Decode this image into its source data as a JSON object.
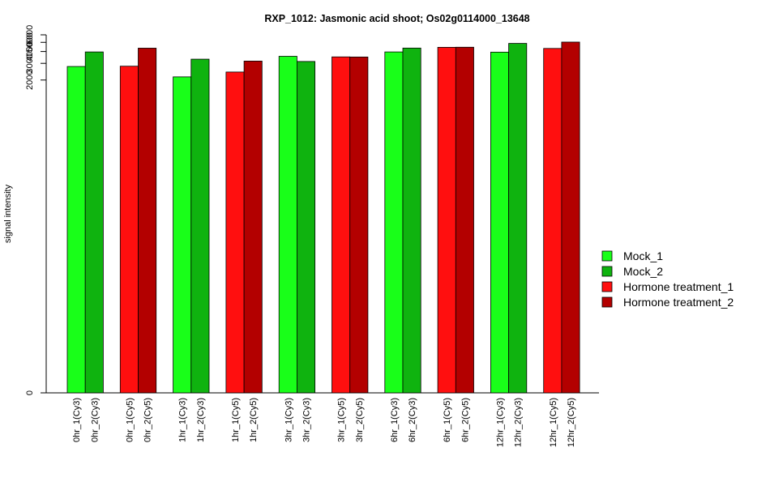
{
  "chart_data": {
    "type": "bar",
    "title": "RXP_1012: Jasmonic acid shoot; Os02g0114000_13648",
    "xlabel": "",
    "ylabel": "signal intensity",
    "y_scale": "log",
    "y_ticks": [
      0,
      2000,
      3000,
      4000,
      5000,
      6000
    ],
    "ylim": [
      0,
      6000
    ],
    "groups": [
      {
        "bars": [
          {
            "label": "0hr_1(Cy3)",
            "series": "Mock_1",
            "value": 2780
          },
          {
            "label": "0hr_2(Cy3)",
            "series": "Mock_2",
            "value": 3960
          }
        ]
      },
      {
        "bars": [
          {
            "label": "0hr_1(Cy5)",
            "series": "Hormone treatment_1",
            "value": 2800
          },
          {
            "label": "0hr_2(Cy5)",
            "series": "Hormone treatment_2",
            "value": 4340
          }
        ]
      },
      {
        "bars": [
          {
            "label": "1hr_1(Cy3)",
            "series": "Mock_1",
            "value": 2160
          },
          {
            "label": "1hr_2(Cy3)",
            "series": "Mock_2",
            "value": 3320
          }
        ]
      },
      {
        "bars": [
          {
            "label": "1hr_1(Cy5)",
            "series": "Hormone treatment_1",
            "value": 2430
          },
          {
            "label": "1hr_2(Cy5)",
            "series": "Hormone treatment_2",
            "value": 3170
          }
        ]
      },
      {
        "bars": [
          {
            "label": "3hr_1(Cy3)",
            "series": "Mock_1",
            "value": 3560
          },
          {
            "label": "3hr_2(Cy3)",
            "series": "Mock_2",
            "value": 3140
          }
        ]
      },
      {
        "bars": [
          {
            "label": "3hr_1(Cy5)",
            "series": "Hormone treatment_1",
            "value": 3510
          },
          {
            "label": "3hr_2(Cy5)",
            "series": "Hormone treatment_2",
            "value": 3500
          }
        ]
      },
      {
        "bars": [
          {
            "label": "6hr_1(Cy3)",
            "series": "Mock_1",
            "value": 3960
          },
          {
            "label": "6hr_2(Cy3)",
            "series": "Mock_2",
            "value": 4350
          }
        ]
      },
      {
        "bars": [
          {
            "label": "6hr_1(Cy5)",
            "series": "Hormone treatment_1",
            "value": 4430
          },
          {
            "label": "6hr_2(Cy5)",
            "series": "Hormone treatment_2",
            "value": 4440
          }
        ]
      },
      {
        "bars": [
          {
            "label": "12hr_1(Cy3)",
            "series": "Mock_1",
            "value": 3940
          },
          {
            "label": "12hr_2(Cy3)",
            "series": "Mock_2",
            "value": 4870
          }
        ]
      },
      {
        "bars": [
          {
            "label": "12hr_1(Cy5)",
            "series": "Hormone treatment_1",
            "value": 4310
          },
          {
            "label": "12hr_2(Cy5)",
            "series": "Hormone treatment_2",
            "value": 5030
          }
        ]
      }
    ],
    "legend": {
      "placement": "right",
      "items": [
        {
          "name": "Mock_1",
          "color": "#19FF19"
        },
        {
          "name": "Mock_2",
          "color": "#0FB30F"
        },
        {
          "name": "Hormone treatment_1",
          "color": "#FF0F0F"
        },
        {
          "name": "Hormone treatment_2",
          "color": "#B30000"
        }
      ]
    }
  }
}
